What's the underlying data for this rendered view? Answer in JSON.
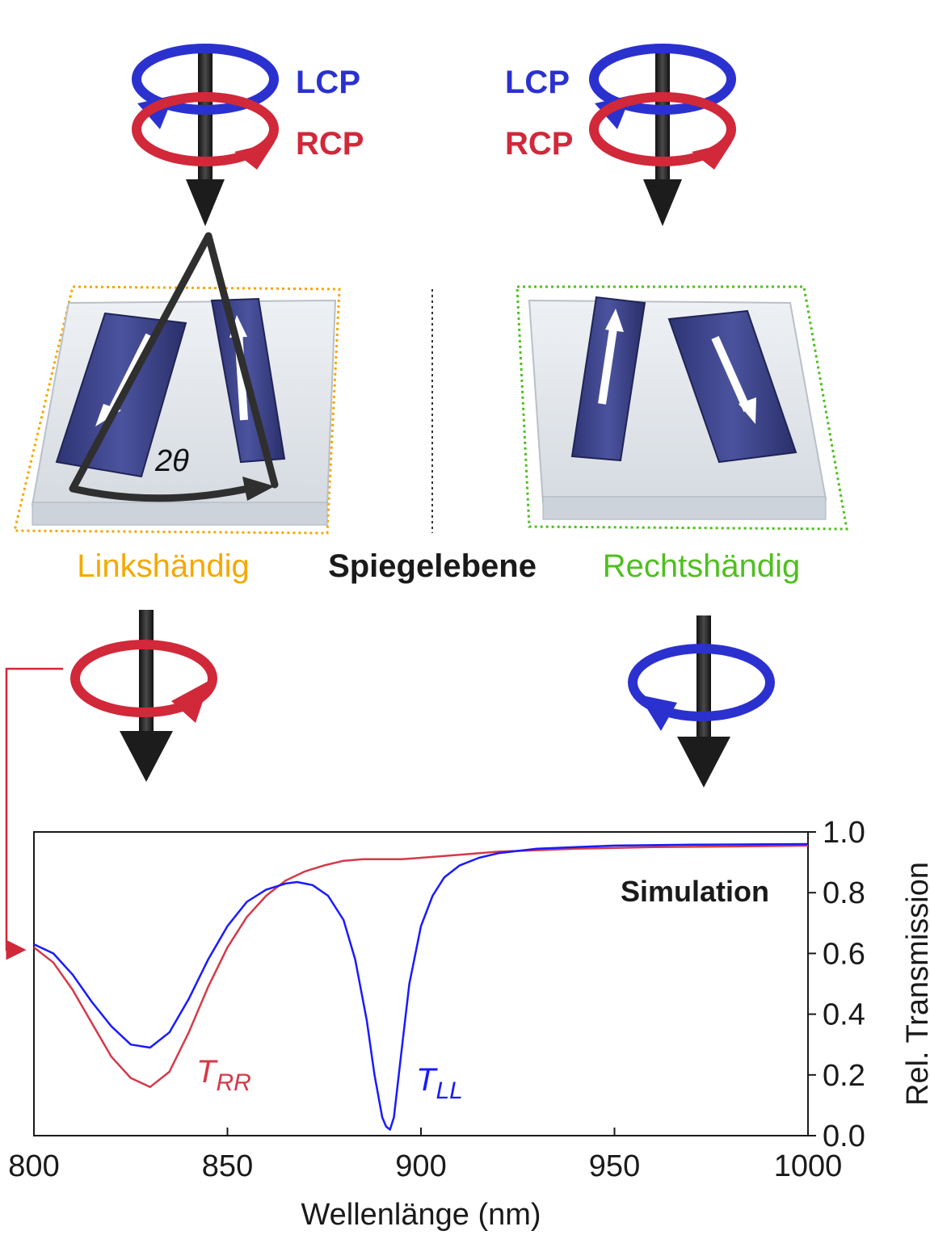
{
  "colors": {
    "lcp": "#2b31cf",
    "rcp": "#d1283a",
    "left_hand": "#f5a800",
    "right_hand": "#4fbf1f",
    "axis": "#1a1a1a",
    "t_rr": "#d43a4a",
    "t_ll": "#1a1aff"
  },
  "top_left": {
    "lcp_label": "LCP",
    "rcp_label": "RCP"
  },
  "top_right": {
    "lcp_label": "LCP",
    "rcp_label": "RCP"
  },
  "structure": {
    "angle_label": "2θ",
    "left_label": "Linkshändig",
    "mirror_label": "Spiegelebene",
    "right_label": "Rechtshändig"
  },
  "icons": {
    "beam_icon": "circular-polarization-arrow-icon",
    "transmitted_left": "rcp-transmitted-icon",
    "transmitted_right": "lcp-transmitted-icon"
  },
  "chart_data": {
    "type": "line",
    "title": "",
    "annotation": "Simulation",
    "xlabel": "Wellenlänge (nm)",
    "ylabel": "Rel. Transmission",
    "xlim": [
      800,
      1000
    ],
    "ylim": [
      0.0,
      1.0
    ],
    "xticks": [
      "800",
      "850",
      "900",
      "950",
      "1000"
    ],
    "yticks": [
      "0.0",
      "0.2",
      "0.4",
      "0.6",
      "0.8",
      "1.0"
    ],
    "series": [
      {
        "name": "T_RR",
        "label_main": "T",
        "label_sub": "RR",
        "x": [
          800,
          805,
          810,
          815,
          820,
          825,
          830,
          835,
          840,
          845,
          850,
          855,
          860,
          865,
          870,
          875,
          880,
          885,
          890,
          895,
          900,
          910,
          920,
          930,
          940,
          960,
          980,
          1000
        ],
        "y": [
          0.62,
          0.57,
          0.48,
          0.37,
          0.26,
          0.19,
          0.16,
          0.21,
          0.34,
          0.49,
          0.62,
          0.72,
          0.79,
          0.84,
          0.87,
          0.89,
          0.905,
          0.91,
          0.91,
          0.91,
          0.915,
          0.925,
          0.935,
          0.94,
          0.945,
          0.95,
          0.952,
          0.955
        ]
      },
      {
        "name": "T_LL",
        "label_main": "T",
        "label_sub": "LL",
        "x": [
          800,
          805,
          810,
          815,
          820,
          825,
          830,
          835,
          840,
          845,
          850,
          855,
          860,
          865,
          868,
          872,
          876,
          880,
          883,
          886,
          888,
          890,
          891,
          892,
          893,
          895,
          897,
          900,
          903,
          906,
          910,
          915,
          920,
          930,
          940,
          950,
          970,
          1000
        ],
        "y": [
          0.63,
          0.6,
          0.53,
          0.44,
          0.36,
          0.3,
          0.29,
          0.34,
          0.45,
          0.58,
          0.69,
          0.77,
          0.81,
          0.83,
          0.835,
          0.825,
          0.79,
          0.71,
          0.58,
          0.38,
          0.2,
          0.06,
          0.03,
          0.02,
          0.06,
          0.28,
          0.5,
          0.69,
          0.79,
          0.85,
          0.89,
          0.915,
          0.93,
          0.945,
          0.95,
          0.955,
          0.958,
          0.96
        ]
      }
    ]
  }
}
